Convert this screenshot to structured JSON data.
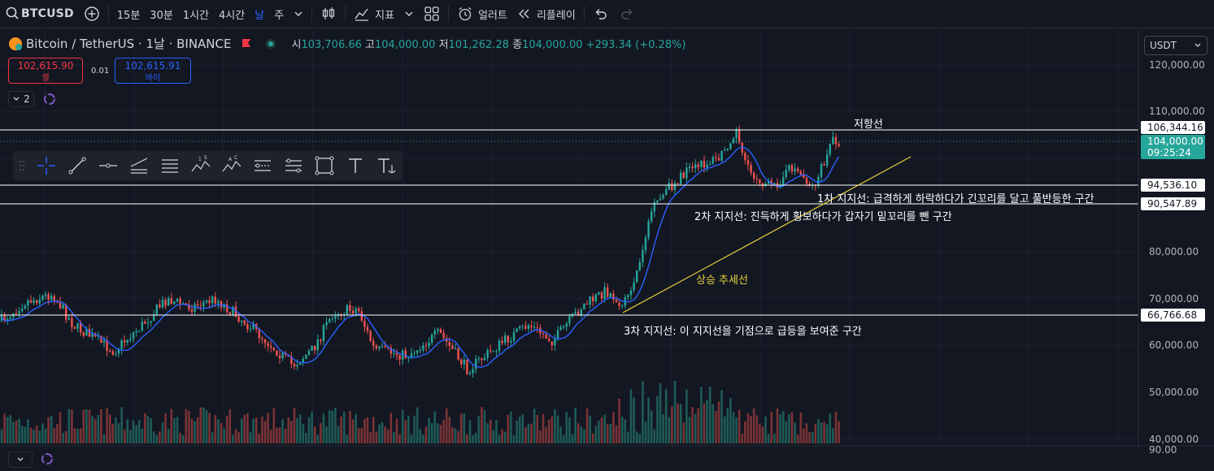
{
  "toolbar": {
    "symbol": "BTCUSD",
    "timeframes": [
      "15분",
      "30분",
      "1시간",
      "4시간",
      "날",
      "주"
    ],
    "indicators_label": "지표",
    "alerts_label": "얼러트",
    "replay_label": "리플레이"
  },
  "legend": {
    "title": "Bitcoin / TetherUS · 1날 · BINANCE",
    "open_label": "시",
    "open": "103,706.66",
    "high_label": "고",
    "high": "104,000.00",
    "low_label": "저",
    "low": "101,262.28",
    "close_label": "종",
    "close": "104,000.00",
    "change": "+293.34 (+0.28%)"
  },
  "trade": {
    "sell_price": "102,615.90",
    "sell_label": "셀",
    "spread": "0.01",
    "buy_price": "102,615.91",
    "buy_label": "바이"
  },
  "indicator_count": "2",
  "currency": "USDT",
  "price_axis": {
    "labels": [
      "120,000.00",
      "110,000.00",
      "80,000.00",
      "70,000.00",
      "60,000.00",
      "50,000.00",
      "40,000.00"
    ],
    "volume_label": "90.00"
  },
  "levels": {
    "resistance": "106,344.16",
    "current": "104,000.00",
    "countdown": "09:25:24",
    "support1": "94,536.10",
    "support2": "90,547.89",
    "support3": "66,766.68"
  },
  "annotations": {
    "resistance": "저항선",
    "support1": "1차 지지선: 급격하게 하락하다가 긴꼬리를 달고 풀반등한 구간",
    "support2": "2차 지지선: 진득하게 횡보하다가 갑자기 밑꼬리를 뺀 구간",
    "trend": "상승 추세선",
    "support3": "3차 지지선: 이 지지선을 기점으로 급등을 보여준 구간"
  },
  "colors": {
    "background": "#131722",
    "up": "#26a69a",
    "down": "#ef5350",
    "ma": "#2962ff",
    "trendline": "#e8d23c",
    "level": "#ffffff"
  },
  "draw_tools": [
    "crosshair-icon",
    "trendline-icon",
    "horizontal-ray-icon",
    "parallel-channel-icon",
    "fib-icon",
    "xabcd-icon",
    "abcd-icon",
    "regression-icon",
    "gann-icon",
    "rectangle-icon",
    "text-icon",
    "anchored-text-icon"
  ]
}
